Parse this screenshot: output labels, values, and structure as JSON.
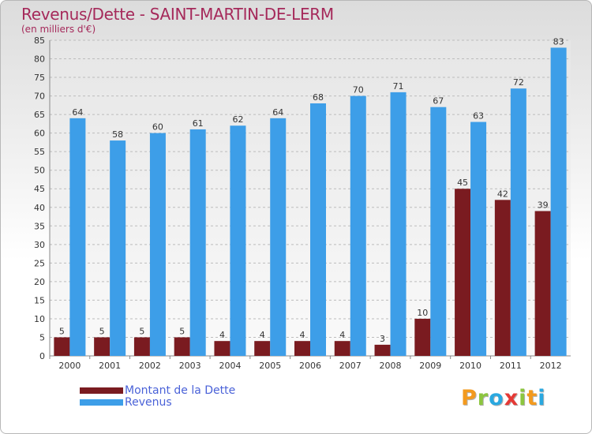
{
  "title": "Revenus/Dette - SAINT-MARTIN-DE-LERM",
  "subtitle": "(en milliers d'€)",
  "logo": {
    "text": "Proxiti",
    "letters": [
      {
        "ch": "P",
        "color": "#f39a1e"
      },
      {
        "ch": "r",
        "color": "#8cc63f"
      },
      {
        "ch": "o",
        "color": "#2aa8e0"
      },
      {
        "ch": "x",
        "color": "#e53935"
      },
      {
        "ch": "i",
        "color": "#8cc63f"
      },
      {
        "ch": "t",
        "color": "#f39a1e"
      },
      {
        "ch": "i",
        "color": "#2aa8e0"
      }
    ]
  },
  "chart_data": {
    "type": "bar",
    "categories": [
      "2000",
      "2001",
      "2002",
      "2003",
      "2004",
      "2005",
      "2006",
      "2007",
      "2008",
      "2009",
      "2010",
      "2011",
      "2012"
    ],
    "series": [
      {
        "name": "Montant de la Dette",
        "color": "#7a1b20",
        "values": [
          5,
          5,
          5,
          5,
          4,
          4,
          4,
          4,
          3,
          10,
          45,
          42,
          39
        ]
      },
      {
        "name": "Revenus",
        "color": "#3d9ee8",
        "values": [
          64,
          58,
          60,
          61,
          62,
          64,
          68,
          70,
          71,
          67,
          63,
          72,
          83
        ]
      }
    ],
    "ylim": [
      0,
      85
    ],
    "yticks": [
      0,
      5,
      10,
      15,
      20,
      25,
      30,
      35,
      40,
      45,
      50,
      55,
      60,
      65,
      70,
      75,
      80,
      85
    ],
    "grid": true,
    "legend_position": "bottom-left"
  }
}
